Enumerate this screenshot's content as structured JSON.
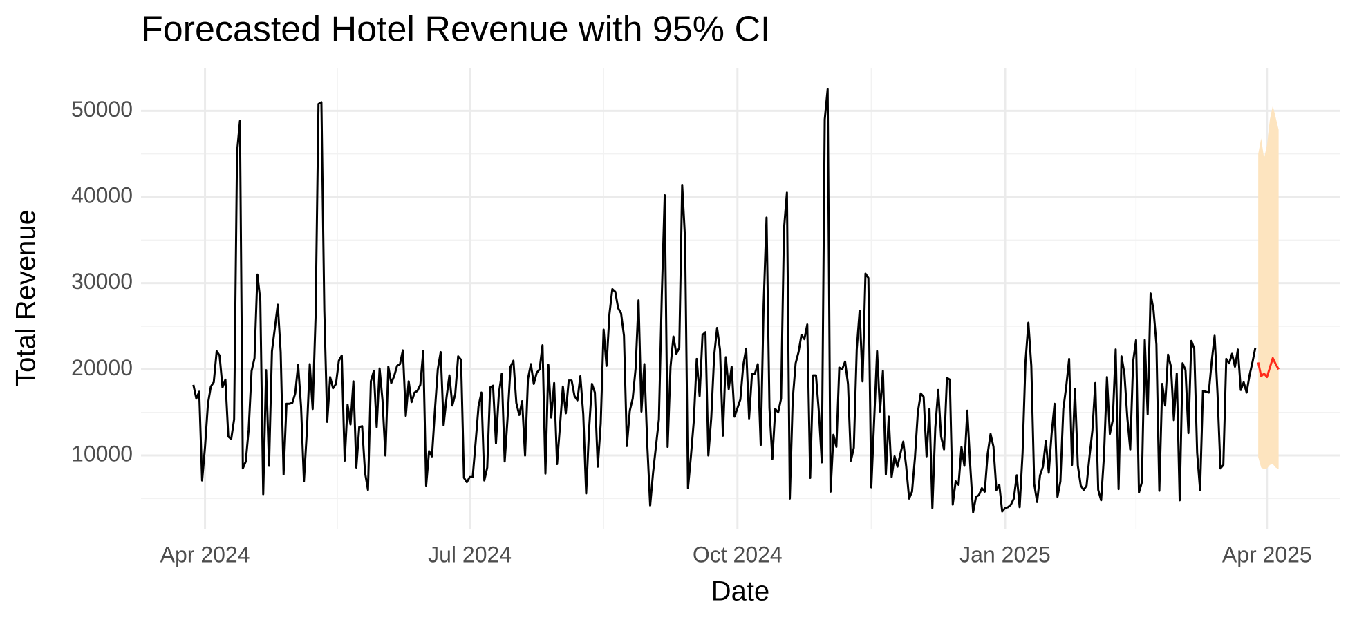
{
  "chart_data": {
    "type": "line",
    "title": "Forecasted Hotel Revenue with 95% CI",
    "x_label": "Date",
    "y_label": "Total Revenue",
    "xlim": [
      "2024-03-10",
      "2025-04-26"
    ],
    "xticks": [
      {
        "value": "2024-04-01",
        "label": "Apr 2024"
      },
      {
        "value": "2024-07-01",
        "label": "Jul 2024"
      },
      {
        "value": "2024-10-01",
        "label": "Oct 2024"
      },
      {
        "value": "2025-01-01",
        "label": "Jan 2025"
      },
      {
        "value": "2025-04-01",
        "label": "Apr 2025"
      }
    ],
    "ylim": [
      1500,
      55000
    ],
    "yticks": [
      10000,
      20000,
      30000,
      40000,
      50000
    ],
    "grid": true,
    "series": [
      {
        "color": "#000000",
        "x": [
          "2024-03-28",
          "2024-03-29",
          "2024-03-30",
          "2024-03-31",
          "2024-04-01",
          "2024-04-02",
          "2024-04-03",
          "2024-04-04",
          "2024-04-05",
          "2024-04-06",
          "2024-04-07",
          "2024-04-08",
          "2024-04-09",
          "2024-04-10",
          "2024-04-11",
          "2024-04-12",
          "2024-04-13",
          "2024-04-14",
          "2024-04-15",
          "2024-04-16",
          "2024-04-17",
          "2024-04-18",
          "2024-04-19",
          "2024-04-20",
          "2024-04-21",
          "2024-04-22",
          "2024-04-23",
          "2024-04-24",
          "2024-04-25",
          "2024-04-26",
          "2024-04-27",
          "2024-04-28",
          "2024-04-29",
          "2024-04-30",
          "2024-05-01",
          "2024-05-02",
          "2024-05-03",
          "2024-05-04",
          "2024-05-05",
          "2024-05-06",
          "2024-05-07",
          "2024-05-08",
          "2024-05-09",
          "2024-05-10",
          "2024-05-11",
          "2024-05-12",
          "2024-05-13",
          "2024-05-14",
          "2024-05-15",
          "2024-05-16",
          "2024-05-17",
          "2024-05-18",
          "2024-05-19",
          "2024-05-20",
          "2024-05-21",
          "2024-05-22",
          "2024-05-23",
          "2024-05-24",
          "2024-05-25",
          "2024-05-26",
          "2024-05-27",
          "2024-05-28",
          "2024-05-29",
          "2024-05-30",
          "2024-05-31",
          "2024-06-01",
          "2024-06-02",
          "2024-06-03",
          "2024-06-04",
          "2024-06-05",
          "2024-06-06",
          "2024-06-07",
          "2024-06-08",
          "2024-06-09",
          "2024-06-10",
          "2024-06-11",
          "2024-06-12",
          "2024-06-13",
          "2024-06-14",
          "2024-06-15",
          "2024-06-16",
          "2024-06-17",
          "2024-06-18",
          "2024-06-19",
          "2024-06-20",
          "2024-06-21",
          "2024-06-22",
          "2024-06-23",
          "2024-06-24",
          "2024-06-25",
          "2024-06-26",
          "2024-06-27",
          "2024-06-28",
          "2024-06-29",
          "2024-06-30",
          "2024-07-01",
          "2024-07-02",
          "2024-07-03",
          "2024-07-04",
          "2024-07-05",
          "2024-07-06",
          "2024-07-07",
          "2024-07-08",
          "2024-07-09",
          "2024-07-10",
          "2024-07-11",
          "2024-07-12",
          "2024-07-13",
          "2024-07-14",
          "2024-07-15",
          "2024-07-16",
          "2024-07-17",
          "2024-07-18",
          "2024-07-19",
          "2024-07-20",
          "2024-07-21",
          "2024-07-22",
          "2024-07-23",
          "2024-07-24",
          "2024-07-25",
          "2024-07-26",
          "2024-07-27",
          "2024-07-28",
          "2024-07-29",
          "2024-07-30",
          "2024-07-31",
          "2024-08-01",
          "2024-08-02",
          "2024-08-03",
          "2024-08-04",
          "2024-08-05",
          "2024-08-06",
          "2024-08-07",
          "2024-08-08",
          "2024-08-09",
          "2024-08-10",
          "2024-08-11",
          "2024-08-12",
          "2024-08-13",
          "2024-08-14",
          "2024-08-15",
          "2024-08-16",
          "2024-08-17",
          "2024-08-18",
          "2024-08-19",
          "2024-08-20",
          "2024-08-21",
          "2024-08-22",
          "2024-08-23",
          "2024-08-24",
          "2024-08-25",
          "2024-08-26",
          "2024-08-27",
          "2024-08-28",
          "2024-08-29",
          "2024-08-30",
          "2024-08-31",
          "2024-09-01",
          "2024-09-02",
          "2024-09-03",
          "2024-09-04",
          "2024-09-05",
          "2024-09-06",
          "2024-09-07",
          "2024-09-08",
          "2024-09-09",
          "2024-09-10",
          "2024-09-11",
          "2024-09-12",
          "2024-09-13",
          "2024-09-14",
          "2024-09-15",
          "2024-09-16",
          "2024-09-17",
          "2024-09-18",
          "2024-09-19",
          "2024-09-20",
          "2024-09-21",
          "2024-09-22",
          "2024-09-23",
          "2024-09-24",
          "2024-09-25",
          "2024-09-26",
          "2024-09-27",
          "2024-09-28",
          "2024-09-29",
          "2024-09-30",
          "2024-10-01",
          "2024-10-02",
          "2024-10-03",
          "2024-10-04",
          "2024-10-05",
          "2024-10-06",
          "2024-10-07",
          "2024-10-08",
          "2024-10-09",
          "2024-10-10",
          "2024-10-11",
          "2024-10-12",
          "2024-10-13",
          "2024-10-14",
          "2024-10-15",
          "2024-10-16",
          "2024-10-17",
          "2024-10-18",
          "2024-10-19",
          "2024-10-20",
          "2024-10-21",
          "2024-10-22",
          "2024-10-23",
          "2024-10-24",
          "2024-10-25",
          "2024-10-26",
          "2024-10-27",
          "2024-10-28",
          "2024-10-29",
          "2024-10-30",
          "2024-10-31",
          "2024-11-01",
          "2024-11-02",
          "2024-11-03",
          "2024-11-04",
          "2024-11-05",
          "2024-11-06",
          "2024-11-07",
          "2024-11-08",
          "2024-11-09",
          "2024-11-10",
          "2024-11-11",
          "2024-11-12",
          "2024-11-13",
          "2024-11-14",
          "2024-11-15",
          "2024-11-16",
          "2024-11-17",
          "2024-11-18",
          "2024-11-19",
          "2024-11-20",
          "2024-11-21",
          "2024-11-22",
          "2024-11-23",
          "2024-11-24",
          "2024-11-25",
          "2024-11-26",
          "2024-11-27",
          "2024-11-28",
          "2024-11-29",
          "2024-11-30",
          "2024-12-01",
          "2024-12-02",
          "2024-12-03",
          "2024-12-04",
          "2024-12-05",
          "2024-12-06",
          "2024-12-07",
          "2024-12-08",
          "2024-12-09",
          "2024-12-10",
          "2024-12-11",
          "2024-12-12",
          "2024-12-13",
          "2024-12-14",
          "2024-12-15",
          "2024-12-16",
          "2024-12-17",
          "2024-12-18",
          "2024-12-19",
          "2024-12-20",
          "2024-12-21",
          "2024-12-22",
          "2024-12-23",
          "2024-12-24",
          "2024-12-25",
          "2024-12-26",
          "2024-12-27",
          "2024-12-28",
          "2024-12-29",
          "2024-12-30",
          "2024-12-31",
          "2025-01-01",
          "2025-01-02",
          "2025-01-03",
          "2025-01-04",
          "2025-01-05",
          "2025-01-06",
          "2025-01-07",
          "2025-01-08",
          "2025-01-09",
          "2025-01-10",
          "2025-01-11",
          "2025-01-12",
          "2025-01-13",
          "2025-01-14",
          "2025-01-15",
          "2025-01-16",
          "2025-01-17",
          "2025-01-18",
          "2025-01-19",
          "2025-01-20",
          "2025-01-21",
          "2025-01-22",
          "2025-01-23",
          "2025-01-24",
          "2025-01-25",
          "2025-01-26",
          "2025-01-27",
          "2025-01-28",
          "2025-01-29",
          "2025-01-30",
          "2025-01-31",
          "2025-02-01",
          "2025-02-02",
          "2025-02-03",
          "2025-02-04",
          "2025-02-05",
          "2025-02-06",
          "2025-02-07",
          "2025-02-08",
          "2025-02-09",
          "2025-02-10",
          "2025-02-11",
          "2025-02-12",
          "2025-02-13",
          "2025-02-14",
          "2025-02-15",
          "2025-02-16",
          "2025-02-17",
          "2025-02-18",
          "2025-02-19",
          "2025-02-20",
          "2025-02-21",
          "2025-02-22",
          "2025-02-23",
          "2025-02-24",
          "2025-02-25",
          "2025-02-26",
          "2025-02-27",
          "2025-02-28",
          "2025-03-01",
          "2025-03-02",
          "2025-03-03",
          "2025-03-04",
          "2025-03-05",
          "2025-03-06",
          "2025-03-07",
          "2025-03-08",
          "2025-03-09",
          "2025-03-10",
          "2025-03-11",
          "2025-03-12",
          "2025-03-13",
          "2025-03-14",
          "2025-03-15",
          "2025-03-16",
          "2025-03-17",
          "2025-03-18",
          "2025-03-19",
          "2025-03-20",
          "2025-03-21",
          "2025-03-22",
          "2025-03-23",
          "2025-03-24",
          "2025-03-25",
          "2025-03-26",
          "2025-03-27",
          "2025-03-28"
        ],
        "values": [
          18200,
          16600,
          17400,
          7100,
          11000,
          16000,
          18000,
          18500,
          22100,
          21600,
          17900,
          18800,
          12200,
          11900,
          14200,
          45200,
          48800,
          8500,
          9300,
          13000,
          19800,
          21300,
          31000,
          28000,
          5500,
          19900,
          8800,
          22100,
          24800,
          27500,
          22000,
          7800,
          16000,
          16000,
          16100,
          17200,
          20500,
          15700,
          7000,
          12800,
          20600,
          15400,
          26100,
          50800,
          51000,
          26800,
          13900,
          19100,
          17800,
          18300,
          21000,
          21600,
          9400,
          15900,
          13600,
          18600,
          8600,
          13300,
          13400,
          8000,
          6000,
          18600,
          19800,
          13300,
          20100,
          16400,
          10000,
          20300,
          18400,
          19200,
          20400,
          20600,
          22200,
          14600,
          18600,
          16200,
          17300,
          17500,
          18200,
          22100,
          6500,
          10500,
          9900,
          15200,
          20000,
          22000,
          13500,
          16700,
          19300,
          15800,
          17100,
          21500,
          21100,
          7400,
          6900,
          7500,
          7500,
          11500,
          15700,
          17300,
          7100,
          8600,
          17900,
          18100,
          11400,
          17200,
          19500,
          9300,
          14400,
          20300,
          21000,
          16100,
          14700,
          16300,
          10000,
          18900,
          20600,
          18300,
          19600,
          20000,
          22800,
          7900,
          20500,
          14400,
          18400,
          9000,
          13400,
          18000,
          14900,
          18700,
          18700,
          16900,
          16400,
          19200,
          14800,
          5600,
          13000,
          18300,
          17300,
          8700,
          13700,
          24600,
          20400,
          26400,
          29300,
          29000,
          27100,
          26500,
          23900,
          11100,
          15200,
          16600,
          20100,
          28000,
          15100,
          20600,
          11300,
          4200,
          8000,
          11100,
          14200,
          28600,
          40200,
          11000,
          20300,
          23800,
          21800,
          22500,
          41400,
          35100,
          6200,
          9900,
          14000,
          21200,
          16900,
          24000,
          24300,
          10000,
          14400,
          21600,
          24800,
          22300,
          12300,
          21400,
          17700,
          20300,
          14500,
          15500,
          16500,
          20500,
          22400,
          14300,
          19500,
          19500,
          20600,
          11200,
          27500,
          37600,
          15500,
          9600,
          15400,
          15000,
          16600,
          36300,
          40500,
          5000,
          16500,
          20700,
          22000,
          24000,
          23500,
          25200,
          7400,
          19300,
          19300,
          15000,
          9200,
          49000,
          52500,
          5800,
          12400,
          11000,
          20200,
          20000,
          20900,
          18300,
          9400,
          10900,
          22300,
          26800,
          18600,
          31100,
          30600,
          6300,
          14200,
          22100,
          15100,
          19800,
          7800,
          14500,
          7500,
          9900,
          8700,
          10200,
          11600,
          8700,
          5000,
          5800,
          9700,
          15000,
          17200,
          16800,
          9900,
          15400,
          3900,
          13200,
          17600,
          12200,
          10700,
          19000,
          18800,
          4300,
          7000,
          6600,
          11000,
          8800,
          15200,
          8900,
          3400,
          5200,
          5400,
          6200,
          5800,
          10200,
          12500,
          11000,
          6000,
          6600,
          3500,
          3900,
          4000,
          4300,
          5000,
          7700,
          4000,
          10300,
          20900,
          25400,
          20400,
          6700,
          4600,
          7700,
          8700,
          11700,
          8000,
          12600,
          16000,
          5200,
          7000,
          15400,
          18000,
          21200,
          8900,
          17700,
          8800,
          6500,
          6000,
          6500,
          9900,
          12900,
          18400,
          6000,
          4800,
          10100,
          19100,
          12500,
          14100,
          22300,
          6100,
          21500,
          19500,
          14400,
          10700,
          20900,
          23400,
          5700,
          6900,
          23400,
          14800,
          28800,
          26900,
          22900,
          5900,
          18300,
          15800,
          21700,
          20300,
          14100,
          19500,
          4800,
          20700,
          19900,
          12600,
          23300,
          22400,
          10300,
          6000,
          17500,
          17400,
          17300,
          20900,
          23900,
          17200,
          8500,
          8900,
          21200,
          20700,
          21800,
          20300,
          22300,
          17600,
          18500,
          17300,
          19300,
          20800,
          22500
        ]
      },
      {
        "color": "#ff2a1a",
        "band_color": "#fde4bf",
        "x": [
          "2025-03-29",
          "2025-03-30",
          "2025-03-31",
          "2025-04-01",
          "2025-04-02",
          "2025-04-03",
          "2025-04-04",
          "2025-04-05"
        ],
        "values": [
          20800,
          19200,
          19500,
          19100,
          20200,
          21300,
          20600,
          20000
        ],
        "lower": [
          9800,
          8600,
          8400,
          8500,
          8900,
          9000,
          8600,
          8400
        ],
        "upper": [
          45000,
          46800,
          44500,
          46000,
          49000,
          50600,
          49200,
          47800
        ]
      }
    ]
  }
}
